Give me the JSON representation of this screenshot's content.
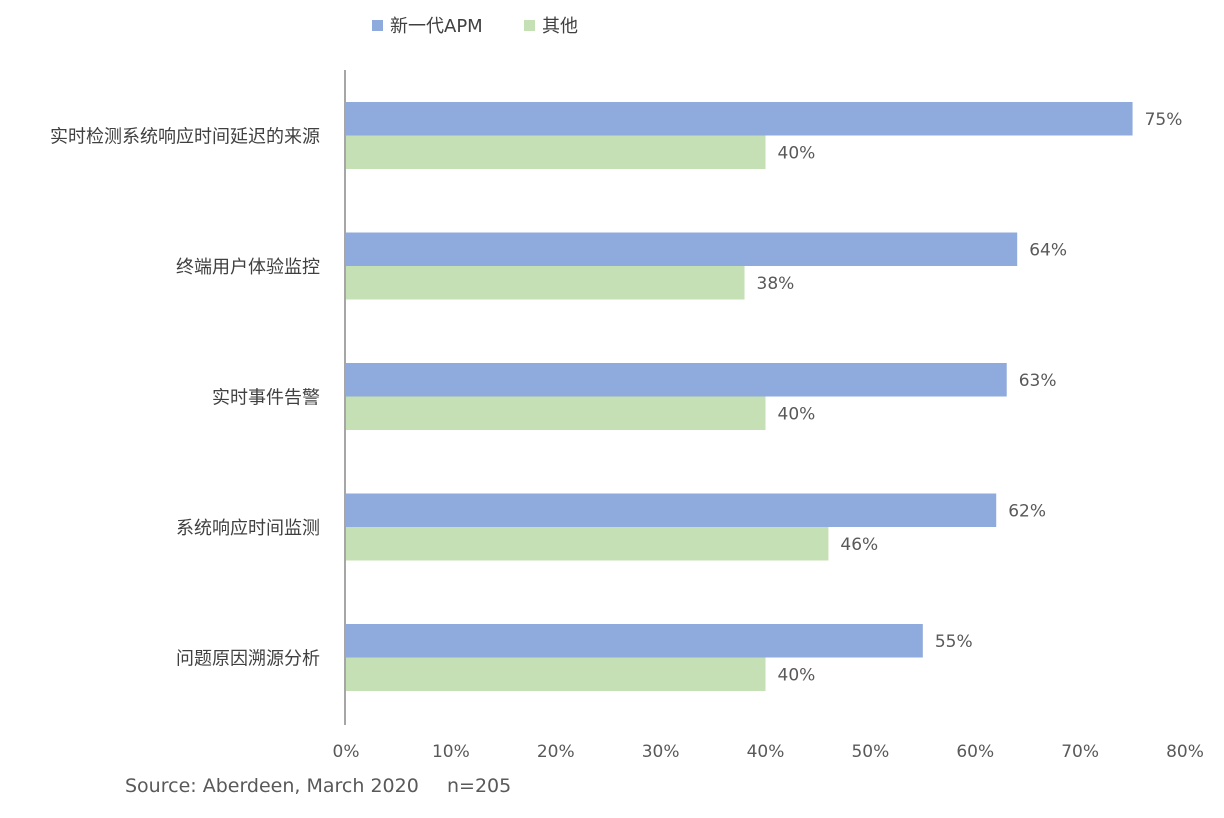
{
  "chart_data": {
    "type": "bar",
    "orientation": "horizontal",
    "categories": [
      "实时检测系统响应时间延迟的来源",
      "终端用户体验监控",
      "实时事件告警",
      "系统响应时间监测",
      "问题原因溯源分析"
    ],
    "series": [
      {
        "name": "新一代APM",
        "color": "#8faadc",
        "values": [
          75,
          64,
          63,
          62,
          55
        ],
        "labels": [
          "75%",
          "64%",
          "63%",
          "62%",
          "55%"
        ]
      },
      {
        "name": "其他",
        "color": "#c5e0b4",
        "values": [
          40,
          38,
          40,
          46,
          40
        ],
        "labels": [
          "40%",
          "38%",
          "40%",
          "46%",
          "40%"
        ]
      }
    ],
    "xlim": [
      0,
      80
    ],
    "x_ticks": [
      0,
      10,
      20,
      30,
      40,
      50,
      60,
      70,
      80
    ],
    "x_tick_labels": [
      "0%",
      "10%",
      "20%",
      "30%",
      "40%",
      "50%",
      "60%",
      "70%",
      "80%"
    ],
    "grid": false,
    "legend_position": "top"
  },
  "footer": {
    "source": "Source: Aberdeen, March 2020",
    "sample": "n=205"
  },
  "colors": {
    "axis": "#a6a6a6",
    "text": "#404040",
    "value_label": "#595959",
    "footer_text": "#595959"
  }
}
